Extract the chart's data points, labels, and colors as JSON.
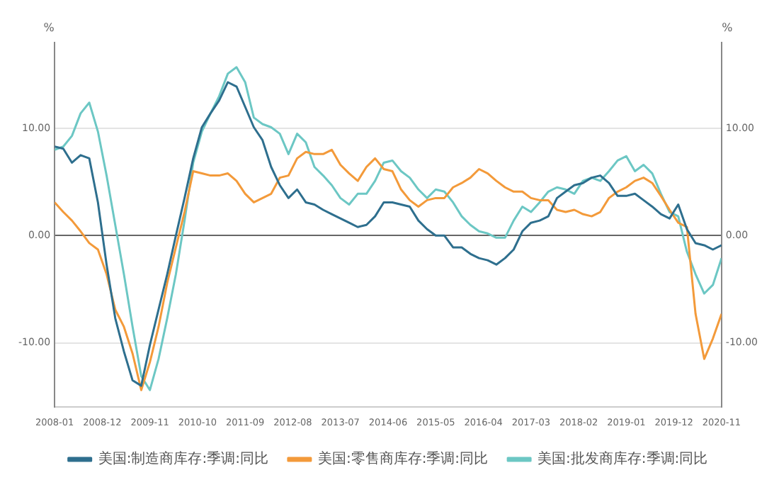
{
  "chart_data": {
    "type": "line",
    "ylabel": "%",
    "y2label": "%",
    "x": [
      "2008-01",
      "2008-03",
      "2008-05",
      "2008-07",
      "2008-09",
      "2008-11",
      "2009-01",
      "2009-03",
      "2009-05",
      "2009-07",
      "2009-09",
      "2009-11",
      "2010-01",
      "2010-03",
      "2010-05",
      "2010-07",
      "2010-09",
      "2010-11",
      "2011-01",
      "2011-03",
      "2011-05",
      "2011-07",
      "2011-09",
      "2011-11",
      "2012-01",
      "2012-03",
      "2012-05",
      "2012-07",
      "2012-09",
      "2012-11",
      "2013-01",
      "2013-03",
      "2013-05",
      "2013-07",
      "2013-09",
      "2013-11",
      "2014-01",
      "2014-03",
      "2014-05",
      "2014-07",
      "2014-09",
      "2014-11",
      "2015-01",
      "2015-03",
      "2015-05",
      "2015-07",
      "2015-09",
      "2015-11",
      "2016-01",
      "2016-03",
      "2016-05",
      "2016-07",
      "2016-09",
      "2016-11",
      "2017-01",
      "2017-03",
      "2017-05",
      "2017-07",
      "2017-09",
      "2017-11",
      "2018-01",
      "2018-03",
      "2018-05",
      "2018-07",
      "2018-09",
      "2018-11",
      "2019-01",
      "2019-03",
      "2019-05",
      "2019-07",
      "2019-09",
      "2019-11",
      "2020-01",
      "2020-03",
      "2020-05",
      "2020-07",
      "2020-09",
      "2020-11"
    ],
    "series": [
      {
        "name": "美国:制造商库存:季调:同比",
        "color": "#2e6f8e",
        "values": [
          8.3,
          8.1,
          6.8,
          7.5,
          7.2,
          3.1,
          -2.7,
          -7.7,
          -10.8,
          -13.5,
          -14,
          -10.2,
          -6.9,
          -3.6,
          0,
          3.5,
          7.2,
          10.1,
          11.4,
          12.6,
          14.3,
          13.9,
          12,
          10.1,
          8.9,
          6.4,
          4.7,
          3.5,
          4.3,
          3.1,
          2.9,
          2.4,
          2,
          1.6,
          1.2,
          0.8,
          1,
          1.8,
          3.1,
          3.1,
          2.9,
          2.7,
          1.4,
          0.6,
          0,
          0,
          -1.1,
          -1.1,
          -1.7,
          -2.1,
          -2.3,
          -2.7,
          -2.1,
          -1.3,
          0.4,
          1.2,
          1.4,
          1.8,
          3.5,
          4.1,
          4.7,
          4.9,
          5.4,
          5.6,
          4.9,
          3.7,
          3.7,
          3.9,
          3.3,
          2.7,
          2,
          1.6,
          2.9,
          0.6,
          -0.7,
          -0.9,
          -1.3,
          -0.9
        ]
      },
      {
        "name": "美国:零售商库存:季调:同比",
        "color": "#f39a3a",
        "values": [
          3.1,
          2.2,
          1.4,
          0.4,
          -0.7,
          -1.3,
          -3.6,
          -6.9,
          -8.5,
          -11,
          -14.4,
          -11.8,
          -8.5,
          -4.4,
          -1.1,
          2.2,
          6,
          5.8,
          5.6,
          5.6,
          5.8,
          5.1,
          3.9,
          3.1,
          3.5,
          3.9,
          5.4,
          5.6,
          7.2,
          7.8,
          7.6,
          7.6,
          8,
          6.6,
          5.8,
          5.1,
          6.4,
          7.2,
          6.2,
          6,
          4.3,
          3.3,
          2.7,
          3.3,
          3.5,
          3.5,
          4.5,
          4.9,
          5.4,
          6.2,
          5.8,
          5.1,
          4.5,
          4.1,
          4.1,
          3.5,
          3.3,
          3.3,
          2.4,
          2.2,
          2.4,
          2,
          1.8,
          2.2,
          3.5,
          4.1,
          4.5,
          5.1,
          5.4,
          4.9,
          3.7,
          2.4,
          1.2,
          0.8,
          -7.3,
          -11.5,
          -9.6,
          -7.3
        ]
      },
      {
        "name": "美国:批发商库存:季调:同比",
        "color": "#6cc7c4",
        "values": [
          8,
          8.3,
          9.3,
          11.4,
          12.4,
          9.7,
          5.6,
          1,
          -3.6,
          -8.5,
          -13.1,
          -14.4,
          -11.5,
          -7.7,
          -3.6,
          1.4,
          6.8,
          9.7,
          11.4,
          13,
          15.1,
          15.7,
          14.3,
          11,
          10.4,
          10.1,
          9.5,
          7.6,
          9.5,
          8.7,
          6.4,
          5.6,
          4.7,
          3.5,
          2.9,
          3.9,
          3.9,
          5.1,
          6.8,
          7,
          6,
          5.4,
          4.3,
          3.5,
          4.3,
          4.1,
          3.1,
          1.8,
          1,
          0.4,
          0.2,
          -0.2,
          -0.2,
          1.4,
          2.7,
          2.2,
          3.1,
          4.1,
          4.5,
          4.3,
          3.9,
          5.1,
          5.4,
          5.1,
          6,
          7,
          7.4,
          6,
          6.6,
          5.8,
          3.9,
          2.2,
          1.8,
          -1.5,
          -3.6,
          -5.4,
          -4.6,
          -2.1
        ]
      }
    ],
    "xlim": [
      "2008-01",
      "2020-11"
    ],
    "xticks": [
      "2008-01",
      "2008-12",
      "2009-11",
      "2010-10",
      "2011-09",
      "2012-08",
      "2013-07",
      "2014-06",
      "2015-05",
      "2016-04",
      "2017-03",
      "2018-02",
      "2019-01",
      "2019-12",
      "2020-11"
    ],
    "ylim": [
      -16,
      18
    ],
    "yticks": [
      {
        "value": -10,
        "label": "-10.00"
      },
      {
        "value": 0,
        "label": "0.00"
      },
      {
        "value": 10,
        "label": "10.00"
      }
    ],
    "y2lim": [
      -16,
      18
    ],
    "y2ticks": [
      {
        "value": -10,
        "label": "-10.00"
      },
      {
        "value": 0,
        "label": "0.00"
      },
      {
        "value": 10,
        "label": "10.00"
      }
    ],
    "grid": "y",
    "legend": "bottom",
    "marker": "none",
    "line_style": "solid"
  }
}
